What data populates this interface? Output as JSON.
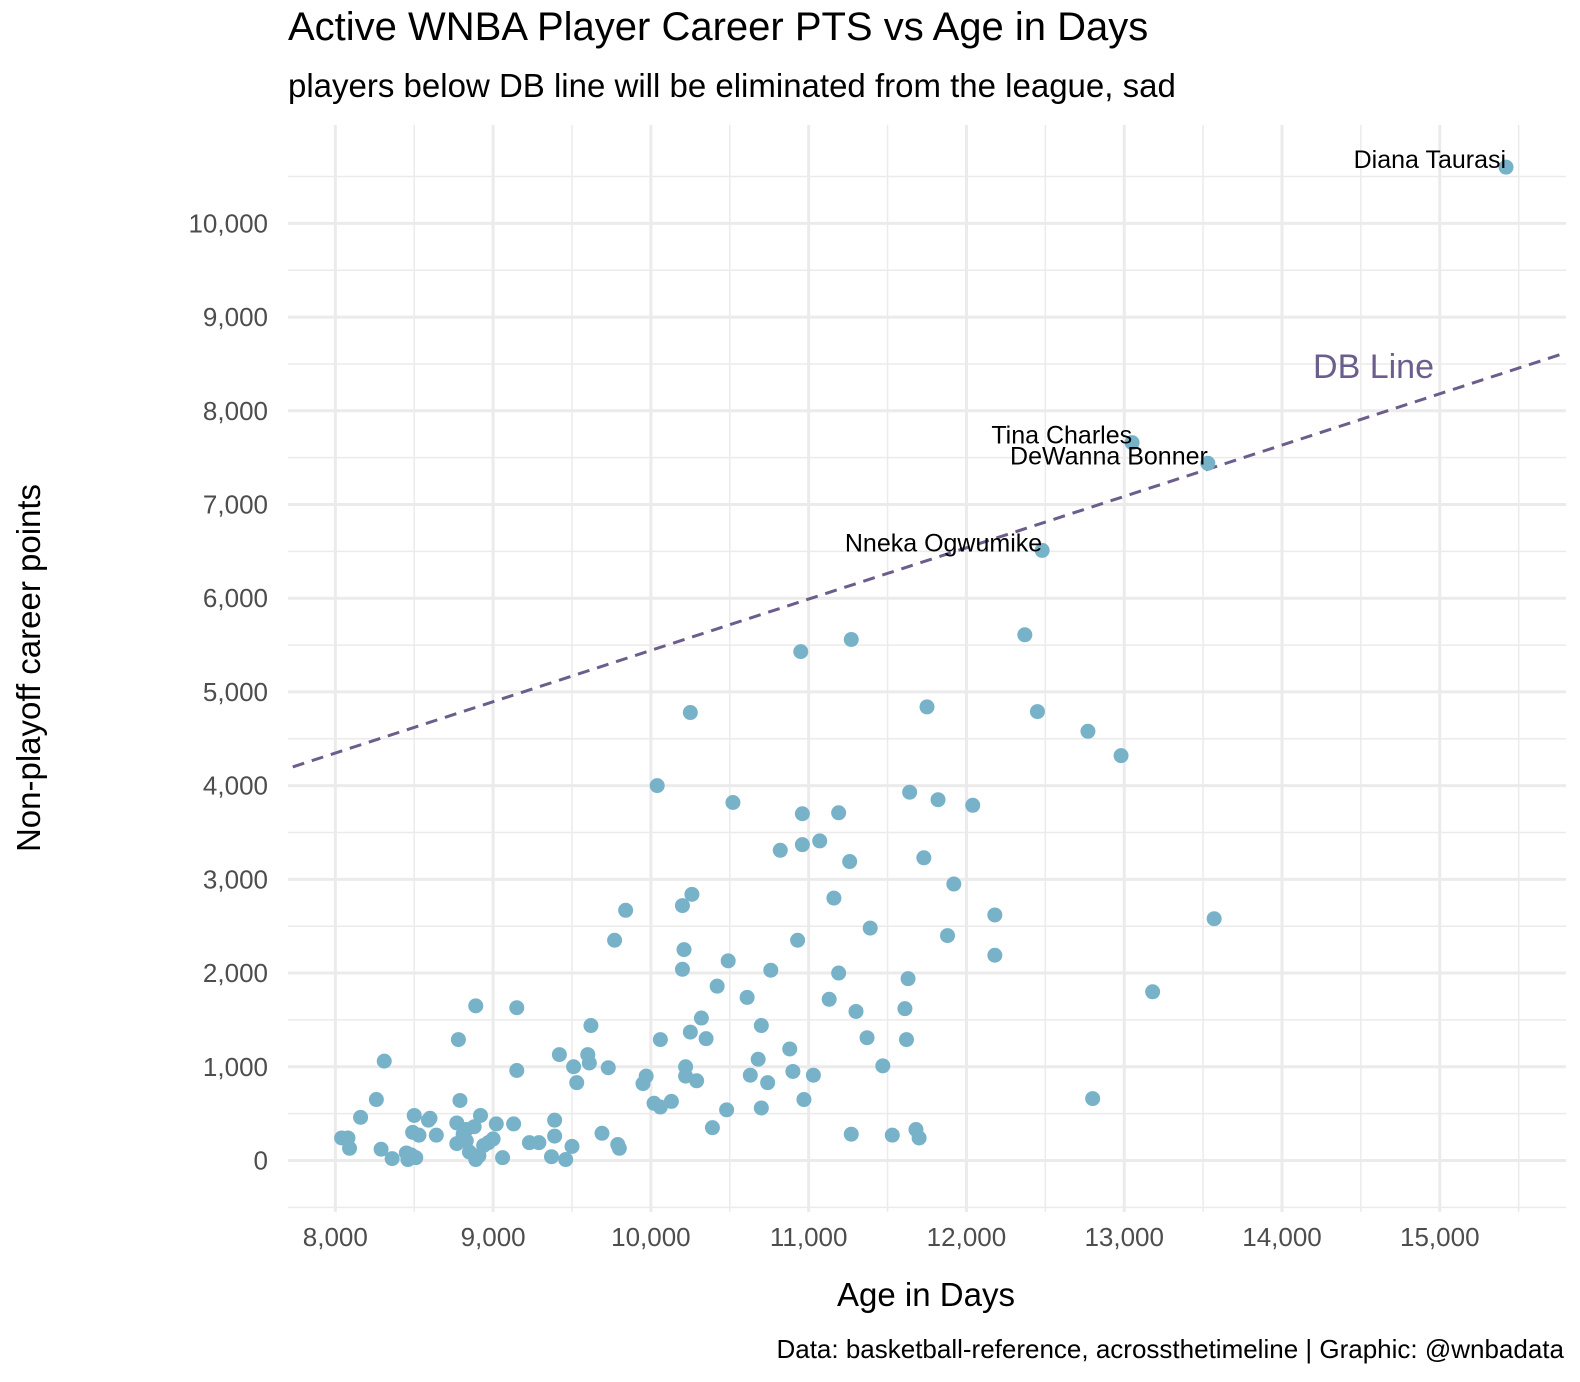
{
  "title": "Active WNBA Player Career PTS vs Age in Days",
  "subtitle": "players below DB line will be eliminated from the league, sad",
  "caption": "Data: basketball-reference, acrossthetimeline | Graphic: @wnbadata",
  "colors": {
    "points": "#78b2c8",
    "db_line": "#6b5d8c",
    "grid": "#ebebeb",
    "ticks": "#4d4d4d"
  },
  "chart_data": {
    "type": "scatter",
    "xlabel": "Age in Days",
    "ylabel": "Non-playoff career points",
    "xlim": [
      7700,
      15800
    ],
    "ylim": [
      -550,
      11050
    ],
    "x_ticks": [
      8000,
      9000,
      10000,
      11000,
      12000,
      13000,
      14000,
      15000
    ],
    "x_tick_labels": [
      "8,000",
      "9,000",
      "10,000",
      "11,000",
      "12,000",
      "13,000",
      "14,000",
      "15,000"
    ],
    "y_ticks": [
      0,
      1000,
      2000,
      3000,
      4000,
      5000,
      6000,
      7000,
      8000,
      9000,
      10000
    ],
    "y_tick_labels": [
      "0",
      "1,000",
      "2,000",
      "3,000",
      "4,000",
      "5,000",
      "6,000",
      "7,000",
      "8,000",
      "9,000",
      "10,000"
    ],
    "grid": true,
    "reference_line": {
      "label": "DB Line",
      "style": "dashed",
      "from": [
        7730,
        4200
      ],
      "to": [
        15800,
        8620
      ]
    },
    "labeled_points": [
      {
        "name": "Diana Taurasi",
        "x": 15420,
        "y": 10600
      },
      {
        "name": "Tina Charles",
        "x": 13050,
        "y": 7660
      },
      {
        "name": "DeWanna Bonner",
        "x": 13530,
        "y": 7440
      },
      {
        "name": "Nneka Ogwumike",
        "x": 12480,
        "y": 6510
      }
    ],
    "points": [
      [
        8040,
        240
      ],
      [
        8080,
        240
      ],
      [
        8090,
        130
      ],
      [
        8160,
        460
      ],
      [
        8260,
        650
      ],
      [
        8290,
        120
      ],
      [
        8310,
        1060
      ],
      [
        8360,
        20
      ],
      [
        8450,
        80
      ],
      [
        8460,
        10
      ],
      [
        8480,
        60
      ],
      [
        8490,
        300
      ],
      [
        8510,
        30
      ],
      [
        8500,
        480
      ],
      [
        8530,
        270
      ],
      [
        8600,
        450
      ],
      [
        8590,
        430
      ],
      [
        8640,
        270
      ],
      [
        8770,
        180
      ],
      [
        8780,
        1290
      ],
      [
        8790,
        640
      ],
      [
        8770,
        400
      ],
      [
        8810,
        280
      ],
      [
        8830,
        330
      ],
      [
        8830,
        210
      ],
      [
        8850,
        90
      ],
      [
        8880,
        360
      ],
      [
        8890,
        10
      ],
      [
        8890,
        1650
      ],
      [
        8910,
        50
      ],
      [
        8920,
        480
      ],
      [
        8940,
        160
      ],
      [
        8970,
        190
      ],
      [
        9000,
        230
      ],
      [
        9020,
        390
      ],
      [
        9060,
        30
      ],
      [
        9130,
        390
      ],
      [
        9150,
        1630
      ],
      [
        9150,
        960
      ],
      [
        9230,
        190
      ],
      [
        9290,
        190
      ],
      [
        9370,
        40
      ],
      [
        9390,
        430
      ],
      [
        9390,
        260
      ],
      [
        9420,
        1130
      ],
      [
        9460,
        10
      ],
      [
        9500,
        150
      ],
      [
        9510,
        1000
      ],
      [
        9530,
        830
      ],
      [
        9600,
        1130
      ],
      [
        9610,
        1040
      ],
      [
        9620,
        1440
      ],
      [
        9690,
        290
      ],
      [
        9730,
        990
      ],
      [
        9770,
        2350
      ],
      [
        9790,
        170
      ],
      [
        9800,
        130
      ],
      [
        9840,
        2670
      ],
      [
        9950,
        820
      ],
      [
        9970,
        900
      ],
      [
        10020,
        610
      ],
      [
        10040,
        4000
      ],
      [
        10060,
        570
      ],
      [
        10060,
        1290
      ],
      [
        10130,
        630
      ],
      [
        10200,
        2040
      ],
      [
        10200,
        2720
      ],
      [
        10210,
        2250
      ],
      [
        10220,
        900
      ],
      [
        10220,
        1000
      ],
      [
        10250,
        4780
      ],
      [
        10250,
        1370
      ],
      [
        10260,
        2840
      ],
      [
        10290,
        850
      ],
      [
        10320,
        1520
      ],
      [
        10350,
        1300
      ],
      [
        10390,
        350
      ],
      [
        10420,
        1860
      ],
      [
        10480,
        540
      ],
      [
        10490,
        2130
      ],
      [
        10520,
        3820
      ],
      [
        10610,
        1740
      ],
      [
        10630,
        910
      ],
      [
        10680,
        1080
      ],
      [
        10700,
        1440
      ],
      [
        10700,
        560
      ],
      [
        10740,
        830
      ],
      [
        10760,
        2030
      ],
      [
        10820,
        3310
      ],
      [
        10880,
        1190
      ],
      [
        10900,
        950
      ],
      [
        10930,
        2350
      ],
      [
        10950,
        5430
      ],
      [
        10960,
        3700
      ],
      [
        10960,
        3370
      ],
      [
        10970,
        650
      ],
      [
        11030,
        910
      ],
      [
        11070,
        3410
      ],
      [
        11130,
        1720
      ],
      [
        11160,
        2800
      ],
      [
        11190,
        2000
      ],
      [
        11190,
        3710
      ],
      [
        11260,
        3190
      ],
      [
        11270,
        5560
      ],
      [
        11270,
        280
      ],
      [
        11300,
        1590
      ],
      [
        11370,
        1310
      ],
      [
        11390,
        2480
      ],
      [
        11470,
        1010
      ],
      [
        11530,
        270
      ],
      [
        11610,
        1620
      ],
      [
        11620,
        1290
      ],
      [
        11630,
        1940
      ],
      [
        11640,
        3930
      ],
      [
        11680,
        330
      ],
      [
        11700,
        240
      ],
      [
        11730,
        3230
      ],
      [
        11750,
        4840
      ],
      [
        11820,
        3850
      ],
      [
        11880,
        2400
      ],
      [
        11920,
        2950
      ],
      [
        12040,
        3790
      ],
      [
        12180,
        2620
      ],
      [
        12180,
        2190
      ],
      [
        12370,
        5610
      ],
      [
        12450,
        4790
      ],
      [
        12770,
        4580
      ],
      [
        12800,
        660
      ],
      [
        12980,
        4320
      ],
      [
        13180,
        1800
      ],
      [
        13570,
        2580
      ]
    ]
  }
}
